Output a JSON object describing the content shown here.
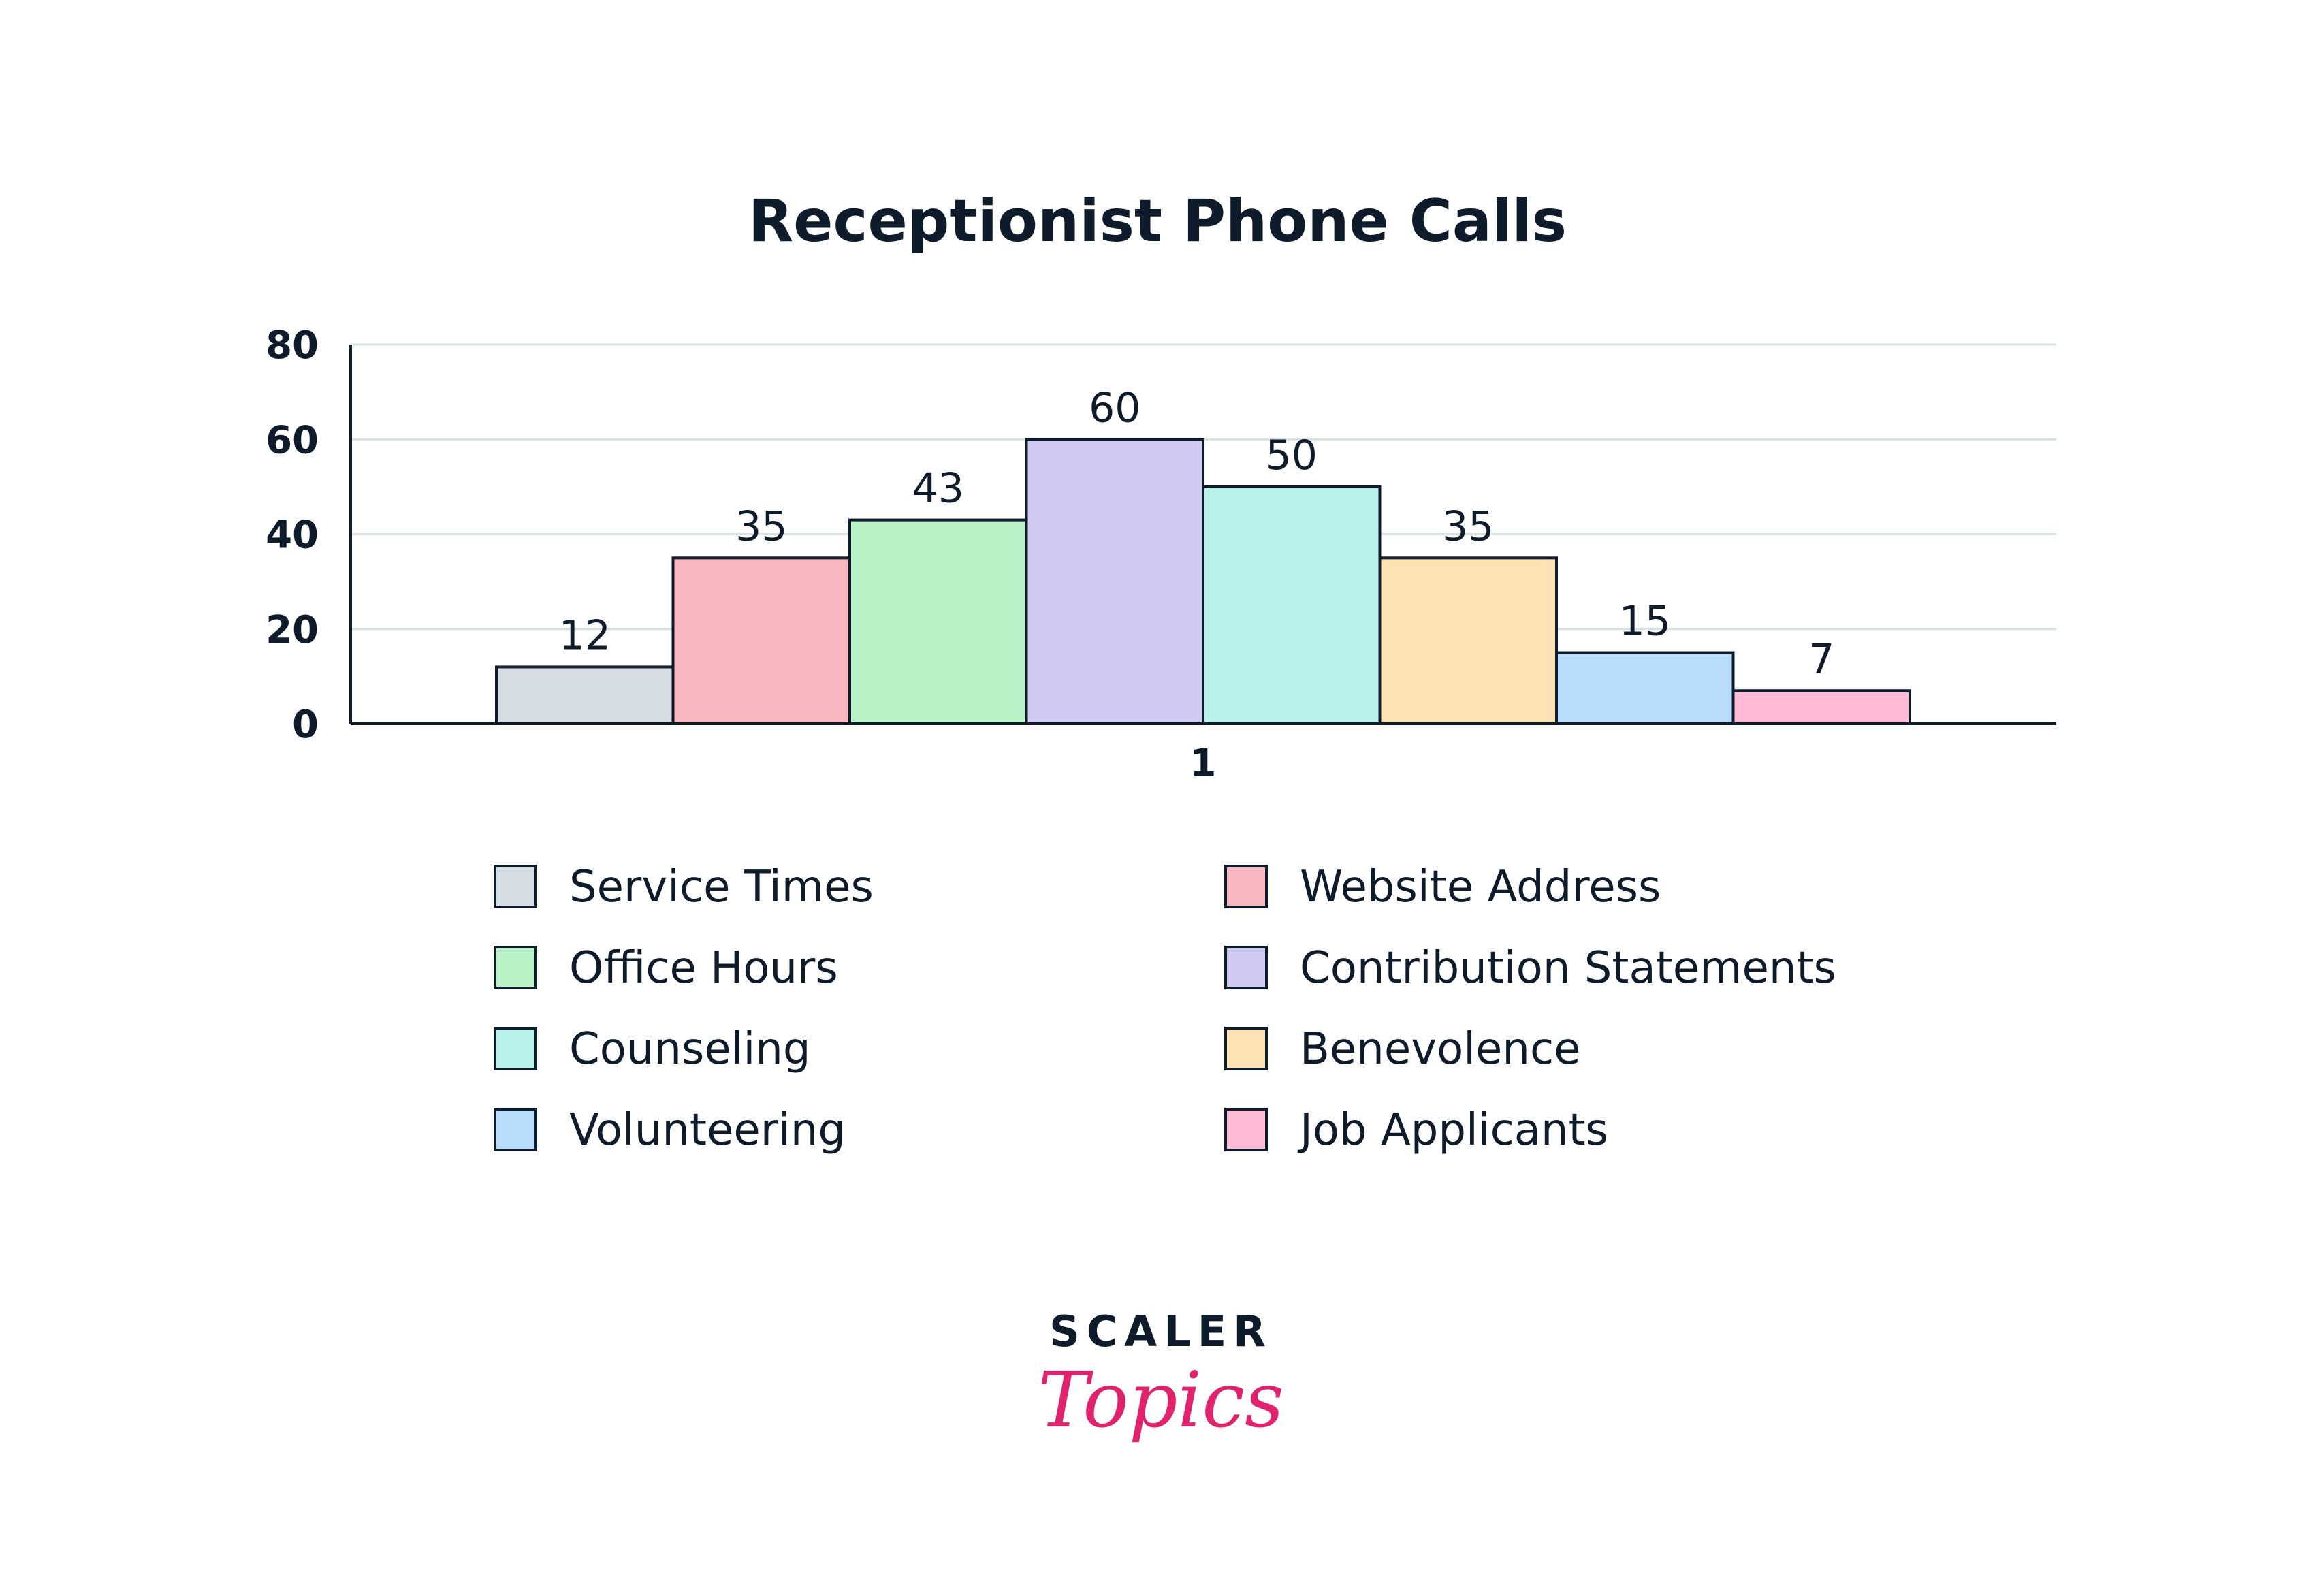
{
  "chart_data": {
    "type": "bar",
    "title": "Receptionist Phone Calls",
    "xlabel": "",
    "ylabel": "",
    "categories": [
      "1"
    ],
    "ylim": [
      0,
      80
    ],
    "yticks": [
      0,
      20,
      40,
      60,
      80
    ],
    "grid": true,
    "legend_position": "bottom",
    "series": [
      {
        "name": "Service Times",
        "values": [
          12
        ],
        "color": "#d6dce3"
      },
      {
        "name": "Website Address",
        "values": [
          35
        ],
        "color": "#f9b8bf"
      },
      {
        "name": "Office Hours",
        "values": [
          43
        ],
        "color": "#baf2c8"
      },
      {
        "name": "Contribution Statements",
        "values": [
          60
        ],
        "color": "#d0caf2"
      },
      {
        "name": "Counseling",
        "values": [
          50
        ],
        "color": "#b7f1ea"
      },
      {
        "name": "Benevolence",
        "values": [
          35
        ],
        "color": "#fde2b6"
      },
      {
        "name": "Volunteering",
        "values": [
          15
        ],
        "color": "#b9ddfc"
      },
      {
        "name": "Job Applicants",
        "values": [
          7
        ],
        "color": "#fdbbd6"
      }
    ]
  },
  "legend_order": [
    "Service Times",
    "Website Address",
    "Office Hours",
    "Contribution Statements",
    "Counseling",
    "Benevolence",
    "Volunteering",
    "Job Applicants"
  ],
  "logo": {
    "top_text": "SCALER",
    "script_text": "Topics",
    "top_color": "#0d1b2a",
    "script_color": "#e1226c"
  },
  "colors": {
    "axis": "#0d1b2a",
    "grid": "#d6e3e1",
    "bar_stroke": "#0d1b2a"
  }
}
